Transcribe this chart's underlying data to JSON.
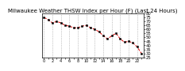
{
  "title": "Milwaukee Weather THSW Index per Hour (F) (Last 24 Hours)",
  "x_values": [
    0,
    1,
    2,
    3,
    4,
    5,
    6,
    7,
    8,
    9,
    10,
    11,
    12,
    13,
    14,
    15,
    16,
    17,
    18,
    19,
    20,
    21,
    22,
    23
  ],
  "y_values": [
    75,
    72,
    68,
    70,
    68,
    65,
    64,
    62,
    62,
    64,
    65,
    62,
    60,
    57,
    52,
    48,
    52,
    55,
    48,
    44,
    45,
    43,
    38,
    30
  ],
  "line_color": "#dd0000",
  "marker_color": "#000000",
  "bg_color": "#ffffff",
  "grid_color": "#999999",
  "ylim_min": 25,
  "ylim_max": 80,
  "yticks": [
    25,
    30,
    35,
    40,
    45,
    50,
    55,
    60,
    65,
    70,
    75,
    80
  ],
  "ytick_labels": [
    "25",
    "30",
    "35",
    "40",
    "45",
    "50",
    "55",
    "60",
    "65",
    "70",
    "75",
    "80"
  ],
  "xtick_step": 1,
  "title_fontsize": 5,
  "tick_fontsize": 3.8
}
